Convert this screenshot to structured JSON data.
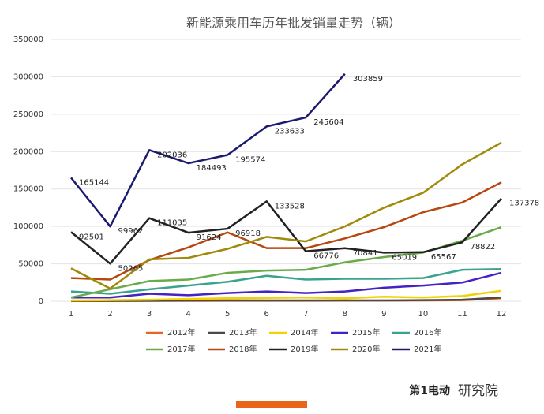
{
  "chart_data": {
    "type": "line",
    "title": "新能源乘用车历年批发销量走势（辆）",
    "x": [
      1,
      2,
      3,
      4,
      5,
      6,
      7,
      8,
      9,
      10,
      11,
      12
    ],
    "xlim": [
      1,
      12
    ],
    "xticks": [
      1,
      2,
      3,
      4,
      5,
      6,
      7,
      8,
      9,
      10,
      11,
      12
    ],
    "ylim": [
      0,
      350000
    ],
    "yticks": [
      0,
      50000,
      100000,
      150000,
      200000,
      250000,
      300000,
      350000
    ],
    "grid": true,
    "legend": "bottom",
    "series": [
      {
        "name": "2012年",
        "color": "#e8651a",
        "values": [
          300,
          400,
          500,
          500,
          600,
          700,
          700,
          800,
          900,
          1000,
          1500,
          4000
        ]
      },
      {
        "name": "2013年",
        "color": "#4a4a4a",
        "values": [
          500,
          500,
          600,
          1000,
          1000,
          1000,
          1000,
          1000,
          1000,
          1500,
          2000,
          5000
        ]
      },
      {
        "name": "2014年",
        "color": "#f2d200",
        "values": [
          1000,
          1500,
          2000,
          3000,
          4000,
          4500,
          5000,
          4000,
          6000,
          5000,
          7000,
          14000
        ]
      },
      {
        "name": "2015年",
        "color": "#4422c4",
        "values": [
          5000,
          5000,
          10000,
          8000,
          11000,
          13000,
          11000,
          13000,
          18000,
          21000,
          25000,
          38000
        ]
      },
      {
        "name": "2016年",
        "color": "#3aa38d",
        "values": [
          13000,
          10000,
          16000,
          21000,
          26000,
          34000,
          29000,
          30000,
          30000,
          31000,
          42000,
          43000
        ]
      },
      {
        "name": "2017年",
        "color": "#6aaa4a",
        "values": [
          5000,
          16000,
          27000,
          29000,
          38000,
          41000,
          42000,
          52000,
          59000,
          65000,
          81000,
          99000
        ]
      },
      {
        "name": "2018年",
        "color": "#b5470f",
        "values": [
          31000,
          29000,
          55000,
          72000,
          92000,
          71000,
          71000,
          84000,
          99000,
          119000,
          132000,
          159000
        ]
      },
      {
        "name": "2019年",
        "color": "#222222",
        "labeled": true,
        "values": [
          92501,
          50265,
          111035,
          91624,
          96918,
          133528,
          66776,
          70841,
          65019,
          65567,
          78822,
          137378
        ]
      },
      {
        "name": "2020年",
        "color": "#a08a0a",
        "values": [
          44000,
          17000,
          56000,
          58000,
          70000,
          86000,
          80000,
          100000,
          125000,
          145000,
          183000,
          212000
        ]
      },
      {
        "name": "2021年",
        "color": "#1c1a6e",
        "labeled": true,
        "values": [
          165144,
          99962,
          202036,
          184493,
          195574,
          233633,
          245604,
          303859,
          null,
          null,
          null,
          null
        ]
      }
    ]
  },
  "footer": {
    "brand": "第1电动",
    "text": "研究院"
  }
}
